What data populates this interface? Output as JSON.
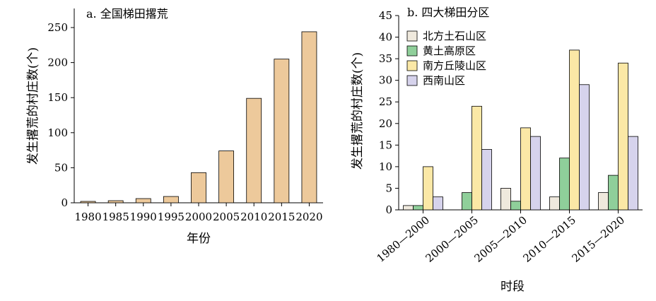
{
  "chart_data": [
    {
      "type": "bar",
      "title": "a. 全国梯田撂荒",
      "xlabel": "年份",
      "ylabel": "发生撂荒的村庄数(个)",
      "categories": [
        "1980",
        "1985",
        "1990",
        "1995",
        "2000",
        "2005",
        "2010",
        "2015",
        "2020"
      ],
      "values": [
        2,
        3,
        6,
        9,
        43,
        74,
        149,
        205,
        244
      ],
      "ylim": [
        0,
        270
      ],
      "yticks": [
        "0",
        "50",
        "100",
        "150",
        "200",
        "250"
      ],
      "color": "#edc99b"
    },
    {
      "type": "bar",
      "title": "b. 四大梯田分区",
      "xlabel": "时段",
      "ylabel": "发生撂荒的村庄数(个)",
      "categories": [
        "1980—2000",
        "2000—2005",
        "2005—2010",
        "2010—2015",
        "2015—2020"
      ],
      "ylim": [
        0,
        45
      ],
      "yticks": [
        "0",
        "5",
        "10",
        "15",
        "20",
        "25",
        "30",
        "35",
        "40",
        "45"
      ],
      "legend_position": "top-left",
      "series": [
        {
          "name": "北方土石山区",
          "color": "#efe9dd",
          "values": [
            1,
            0,
            5,
            3,
            4
          ]
        },
        {
          "name": "黄土高原区",
          "color": "#8fcf9a",
          "values": [
            1,
            4,
            2,
            12,
            8
          ]
        },
        {
          "name": "南方丘陵山区",
          "color": "#fbe8a6",
          "values": [
            10,
            24,
            19,
            37,
            34
          ]
        },
        {
          "name": "西南山区",
          "color": "#d6d3ec",
          "values": [
            3,
            14,
            17,
            29,
            17
          ]
        }
      ]
    }
  ]
}
